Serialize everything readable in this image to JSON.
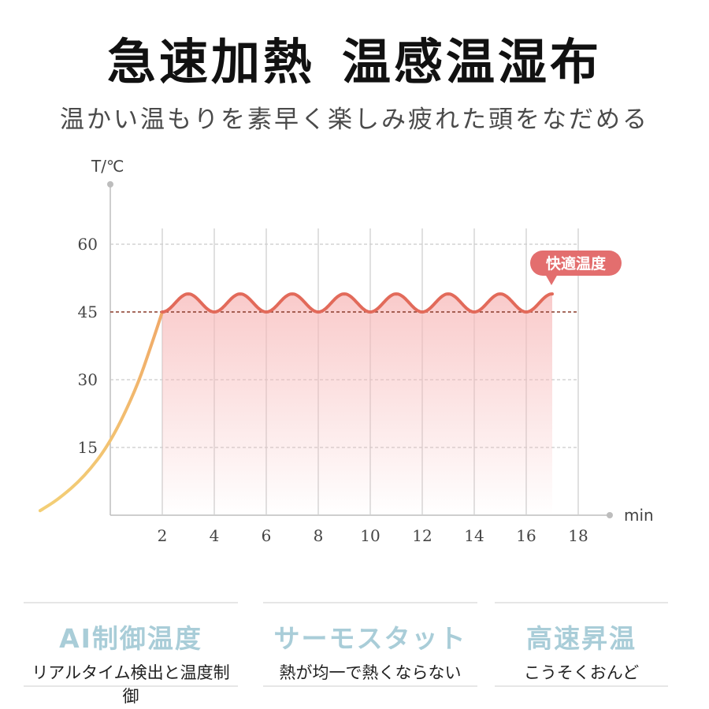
{
  "header": {
    "title_part1": "急速加熱",
    "title_part2": "温感温湿布",
    "subtitle": "温かい温もりを素早く楽しみ疲れた頭をなだめる"
  },
  "chart_data": {
    "type": "line",
    "title": "",
    "xlabel": "min",
    "ylabel": "T/℃",
    "x_ticks": [
      2,
      4,
      6,
      8,
      10,
      12,
      14,
      16,
      18
    ],
    "y_ticks": [
      15,
      30,
      45,
      60
    ],
    "xlim": [
      0,
      18
    ],
    "ylim": [
      0,
      60
    ],
    "reference_line": {
      "y": 45,
      "style": "dashed",
      "color": "#8a3a2a"
    },
    "annotation": {
      "text": "快適温度",
      "color": "#e36e6e"
    },
    "series": [
      {
        "heating_curve": [
          [
            -2.7,
            1
          ],
          [
            -2,
            3.5
          ],
          [
            -1,
            8.5
          ],
          [
            0,
            16
          ],
          [
            1,
            28
          ],
          [
            1.6,
            38
          ],
          [
            2,
            45
          ]
        ],
        "oscillation": {
          "x_start": 2,
          "x_end": 17,
          "center": 47,
          "amplitude": 2,
          "period": 2,
          "min_at_even_minutes": true
        },
        "colors": {
          "start": "#f3cf76",
          "end": "#e26a5a",
          "fill": "#f7b9b9"
        }
      }
    ],
    "grid": true
  },
  "features": [
    {
      "title": "AI制御温度",
      "desc": "リアルタイム検出と温度制御"
    },
    {
      "title": "サーモスタット",
      "desc": "熱が均一で熱くならない"
    },
    {
      "title": "高速昇温",
      "desc": "こうそくおんど"
    }
  ]
}
